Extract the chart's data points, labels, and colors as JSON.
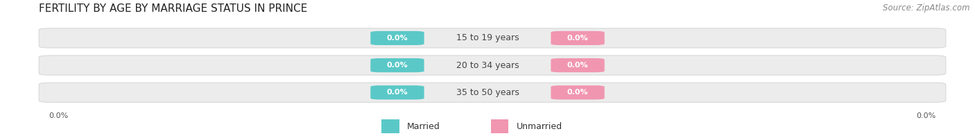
{
  "title": "FERTILITY BY AGE BY MARRIAGE STATUS IN PRINCE",
  "source": "Source: ZipAtlas.com",
  "categories": [
    "15 to 19 years",
    "20 to 34 years",
    "35 to 50 years"
  ],
  "married_color": "#5bc8c8",
  "unmarried_color": "#f196b0",
  "bar_bg_color": "#ececec",
  "bar_border_color": "#d8d8d8",
  "ylabel_married": "Married",
  "ylabel_unmarried": "Unmarried",
  "left_label": "0.0%",
  "right_label": "0.0%",
  "value_label": "0.0%",
  "title_fontsize": 11,
  "source_fontsize": 8.5,
  "value_fontsize": 8,
  "category_fontsize": 9,
  "legend_fontsize": 9
}
